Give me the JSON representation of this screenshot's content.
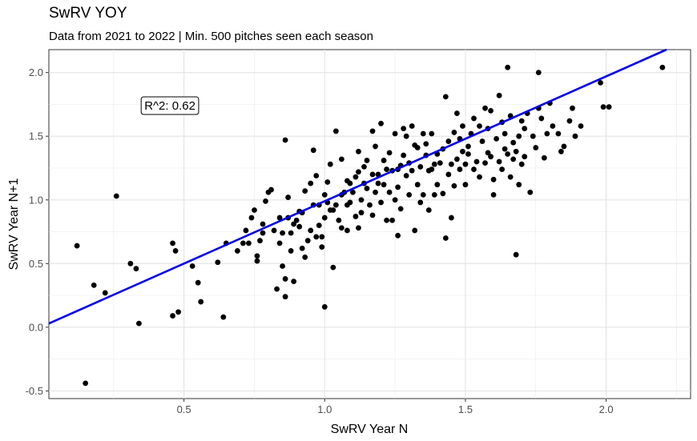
{
  "chart_data": {
    "type": "scatter",
    "title": "SwRV YOY",
    "subtitle": "Data from 2021 to 2022 | Min. 500 pitches seen each season",
    "xlabel": "SwRV Year N",
    "ylabel": "SwRV Year N+1",
    "xlim": [
      0.02,
      2.3
    ],
    "ylim": [
      -0.56,
      2.18
    ],
    "x_ticks": [
      0.5,
      1.0,
      1.5,
      2.0
    ],
    "y_ticks": [
      -0.5,
      0.0,
      0.5,
      1.0,
      1.5,
      2.0
    ],
    "x_tick_labels": [
      "0.5",
      "1.0",
      "1.5",
      "2.0"
    ],
    "y_tick_labels": [
      "-0.5",
      "0.0",
      "0.5",
      "1.0",
      "1.5",
      "2.0"
    ],
    "grid": true,
    "point_color": "#000000",
    "fit_line": {
      "color": "#0000ee",
      "intercept": 0.01,
      "slope": 0.98
    },
    "annotation": {
      "text": "R^2: 0.62",
      "x": 0.45,
      "y": 1.74
    },
    "points": [
      [
        0.12,
        0.64
      ],
      [
        0.18,
        0.33
      ],
      [
        0.15,
        -0.44
      ],
      [
        0.22,
        0.27
      ],
      [
        0.26,
        1.03
      ],
      [
        0.31,
        0.5
      ],
      [
        0.33,
        0.46
      ],
      [
        0.34,
        0.03
      ],
      [
        0.46,
        0.66
      ],
      [
        0.47,
        0.6
      ],
      [
        0.46,
        0.09
      ],
      [
        0.48,
        0.12
      ],
      [
        0.53,
        0.48
      ],
      [
        0.55,
        0.35
      ],
      [
        0.56,
        0.2
      ],
      [
        0.62,
        0.51
      ],
      [
        0.64,
        0.08
      ],
      [
        0.65,
        0.66
      ],
      [
        0.69,
        0.6
      ],
      [
        0.71,
        0.66
      ],
      [
        0.72,
        0.76
      ],
      [
        0.73,
        0.66
      ],
      [
        0.74,
        0.86
      ],
      [
        0.75,
        0.92
      ],
      [
        0.76,
        0.56
      ],
      [
        0.76,
        0.52
      ],
      [
        0.77,
        0.68
      ],
      [
        0.78,
        0.74
      ],
      [
        0.78,
        0.81
      ],
      [
        0.79,
        0.99
      ],
      [
        0.8,
        1.06
      ],
      [
        0.81,
        1.08
      ],
      [
        0.82,
        0.76
      ],
      [
        0.83,
        0.3
      ],
      [
        0.84,
        0.66
      ],
      [
        0.84,
        0.86
      ],
      [
        0.85,
        0.74
      ],
      [
        0.86,
        1.47
      ],
      [
        0.85,
        0.48
      ],
      [
        0.86,
        0.24
      ],
      [
        0.86,
        0.38
      ],
      [
        0.87,
        0.86
      ],
      [
        0.87,
        1.02
      ],
      [
        0.88,
        0.6
      ],
      [
        0.88,
        0.74
      ],
      [
        0.89,
        0.81
      ],
      [
        0.89,
        0.36
      ],
      [
        0.9,
        0.84
      ],
      [
        0.91,
        0.79
      ],
      [
        0.91,
        0.91
      ],
      [
        0.92,
        0.62
      ],
      [
        0.92,
        0.9
      ],
      [
        0.93,
        0.55
      ],
      [
        0.93,
        1.07
      ],
      [
        0.94,
        0.68
      ],
      [
        0.95,
        0.76
      ],
      [
        0.95,
        1.13
      ],
      [
        0.96,
        1.39
      ],
      [
        0.96,
        0.96
      ],
      [
        0.97,
        0.71
      ],
      [
        0.97,
        1.19
      ],
      [
        0.98,
        0.8
      ],
      [
        0.98,
        0.96
      ],
      [
        0.99,
        0.71
      ],
      [
        0.99,
        0.63
      ],
      [
        1.0,
        0.16
      ],
      [
        1.0,
        0.86
      ],
      [
        1.0,
        1.04
      ],
      [
        1.01,
        0.98
      ],
      [
        1.01,
        1.14
      ],
      [
        1.02,
        1.28
      ],
      [
        1.02,
        0.92
      ],
      [
        1.03,
        0.92
      ],
      [
        1.03,
        0.47
      ],
      [
        1.04,
        1.54
      ],
      [
        1.04,
        0.96
      ],
      [
        1.05,
        0.84
      ],
      [
        1.06,
        1.04
      ],
      [
        1.06,
        1.32
      ],
      [
        1.06,
        0.78
      ],
      [
        1.07,
        1.06
      ],
      [
        1.08,
        1.15
      ],
      [
        1.08,
        0.96
      ],
      [
        1.08,
        0.76
      ],
      [
        1.09,
        0.98
      ],
      [
        1.09,
        1.13
      ],
      [
        1.1,
        1.06
      ],
      [
        1.11,
        1.18
      ],
      [
        1.11,
        0.87
      ],
      [
        1.12,
        1.38
      ],
      [
        1.12,
        1.22
      ],
      [
        1.12,
        0.78
      ],
      [
        1.13,
        1.0
      ],
      [
        1.13,
        0.9
      ],
      [
        1.14,
        1.26
      ],
      [
        1.14,
        1.13
      ],
      [
        1.15,
        1.09
      ],
      [
        1.15,
        1.31
      ],
      [
        1.16,
        0.96
      ],
      [
        1.17,
        1.54
      ],
      [
        1.17,
        1.2
      ],
      [
        1.17,
        0.88
      ],
      [
        1.18,
        1.06
      ],
      [
        1.18,
        1.42
      ],
      [
        1.19,
        1.13
      ],
      [
        1.19,
        1.2
      ],
      [
        1.2,
        1.6
      ],
      [
        1.2,
        0.98
      ],
      [
        1.21,
        1.31
      ],
      [
        1.21,
        1.12
      ],
      [
        1.22,
        1.24
      ],
      [
        1.22,
        0.84
      ],
      [
        1.23,
        1.06
      ],
      [
        1.23,
        1.37
      ],
      [
        1.24,
        1.23
      ],
      [
        1.24,
        0.84
      ],
      [
        1.25,
        1.0
      ],
      [
        1.25,
        1.52
      ],
      [
        1.26,
        1.24
      ],
      [
        1.26,
        1.1
      ],
      [
        1.26,
        0.72
      ],
      [
        1.27,
        1.27
      ],
      [
        1.27,
        0.93
      ],
      [
        1.28,
        1.56
      ],
      [
        1.28,
        1.35
      ],
      [
        1.29,
        1.19
      ],
      [
        1.29,
        1.5
      ],
      [
        1.3,
        1.29
      ],
      [
        1.3,
        1.04
      ],
      [
        1.31,
        1.58
      ],
      [
        1.31,
        1.23
      ],
      [
        1.32,
        1.43
      ],
      [
        1.32,
        0.76
      ],
      [
        1.33,
        1.12
      ],
      [
        1.33,
        1.41
      ],
      [
        1.34,
        0.98
      ],
      [
        1.34,
        1.26
      ],
      [
        1.35,
        1.52
      ],
      [
        1.35,
        1.04
      ],
      [
        1.36,
        1.35
      ],
      [
        1.36,
        1.44
      ],
      [
        1.37,
        0.92
      ],
      [
        1.37,
        1.23
      ],
      [
        1.38,
        1.24
      ],
      [
        1.38,
        1.52
      ],
      [
        1.39,
        1.28
      ],
      [
        1.39,
        1.04
      ],
      [
        1.4,
        1.36
      ],
      [
        1.4,
        1.12
      ],
      [
        1.41,
        1.29
      ],
      [
        1.42,
        1.4
      ],
      [
        1.42,
        1.05
      ],
      [
        1.43,
        1.81
      ],
      [
        1.43,
        0.7
      ],
      [
        1.44,
        1.2
      ],
      [
        1.44,
        1.46
      ],
      [
        1.45,
        1.28
      ],
      [
        1.45,
        0.86
      ],
      [
        1.46,
        1.53
      ],
      [
        1.46,
        1.11
      ],
      [
        1.47,
        1.32
      ],
      [
        1.47,
        1.68
      ],
      [
        1.48,
        1.24
      ],
      [
        1.48,
        1.48
      ],
      [
        1.49,
        1.38
      ],
      [
        1.49,
        1.58
      ],
      [
        1.5,
        1.28
      ],
      [
        1.5,
        1.12
      ],
      [
        1.51,
        1.42
      ],
      [
        1.51,
        1.36
      ],
      [
        1.52,
        1.52
      ],
      [
        1.53,
        1.64
      ],
      [
        1.53,
        1.24
      ],
      [
        1.54,
        1.3
      ],
      [
        1.55,
        1.58
      ],
      [
        1.55,
        1.18
      ],
      [
        1.56,
        1.46
      ],
      [
        1.57,
        1.72
      ],
      [
        1.57,
        1.29
      ],
      [
        1.58,
        1.56
      ],
      [
        1.58,
        1.37
      ],
      [
        1.59,
        1.34
      ],
      [
        1.59,
        1.7
      ],
      [
        1.6,
        1.16
      ],
      [
        1.6,
        1.04
      ],
      [
        1.61,
        1.48
      ],
      [
        1.62,
        1.82
      ],
      [
        1.62,
        1.3
      ],
      [
        1.63,
        1.61
      ],
      [
        1.63,
        1.24
      ],
      [
        1.64,
        1.52
      ],
      [
        1.64,
        1.4
      ],
      [
        1.65,
        2.04
      ],
      [
        1.65,
        1.36
      ],
      [
        1.66,
        1.66
      ],
      [
        1.66,
        1.18
      ],
      [
        1.67,
        1.45
      ],
      [
        1.67,
        1.32
      ],
      [
        1.68,
        0.57
      ],
      [
        1.68,
        1.38
      ],
      [
        1.69,
        1.5
      ],
      [
        1.69,
        1.12
      ],
      [
        1.7,
        1.62
      ],
      [
        1.7,
        1.28
      ],
      [
        1.71,
        1.56
      ],
      [
        1.71,
        1.34
      ],
      [
        1.72,
        1.68
      ],
      [
        1.73,
        1.06
      ],
      [
        1.74,
        1.5
      ],
      [
        1.75,
        1.41
      ],
      [
        1.76,
        2.0
      ],
      [
        1.76,
        1.72
      ],
      [
        1.77,
        1.64
      ],
      [
        1.78,
        1.33
      ],
      [
        1.79,
        1.52
      ],
      [
        1.8,
        1.76
      ],
      [
        1.81,
        1.58
      ],
      [
        1.83,
        1.52
      ],
      [
        1.84,
        1.38
      ],
      [
        1.85,
        1.42
      ],
      [
        1.87,
        1.62
      ],
      [
        1.88,
        1.72
      ],
      [
        1.89,
        1.5
      ],
      [
        1.91,
        1.58
      ],
      [
        1.98,
        1.92
      ],
      [
        1.99,
        1.73
      ],
      [
        2.01,
        1.73
      ],
      [
        2.2,
        2.04
      ]
    ]
  }
}
